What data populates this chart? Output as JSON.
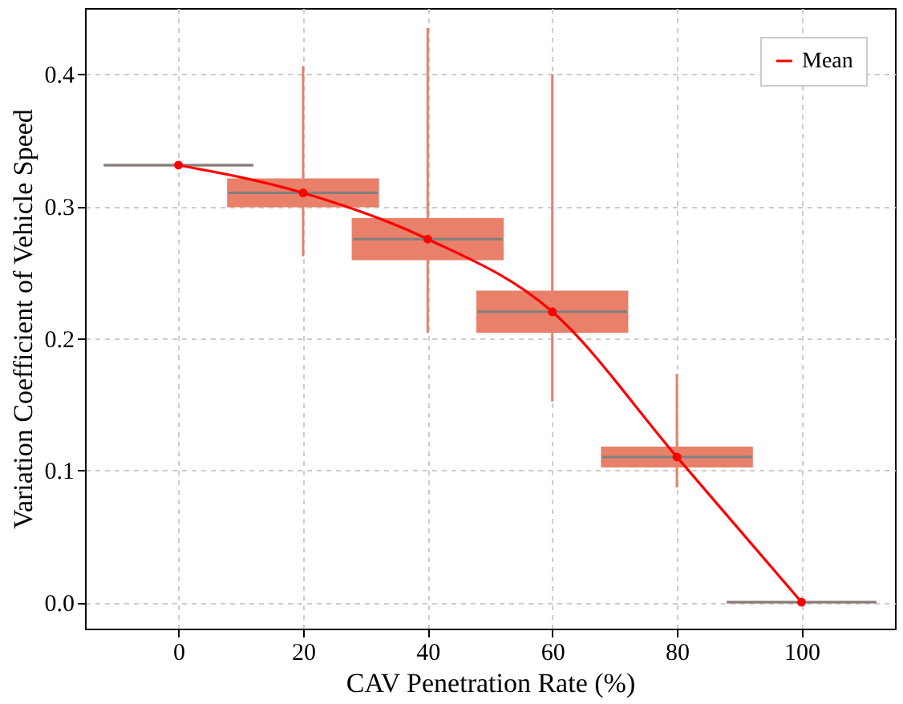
{
  "chart_data": {
    "type": "box",
    "xlabel": "CAV Penetration Rate (%)",
    "ylabel": "Variation Coefficient of Vehicle Speed",
    "x": [
      0,
      20,
      40,
      60,
      80,
      100
    ],
    "xlim": [
      -15,
      115
    ],
    "xticks": [
      0,
      20,
      40,
      60,
      80,
      100
    ],
    "ylim": [
      -0.02,
      0.45
    ],
    "yticks": [
      {
        "value": 0,
        "label": "0.0"
      },
      0.1,
      0.2,
      0.3,
      0.4
    ],
    "grid": true,
    "legend": "top right",
    "series": [
      {
        "color": "#e8806a",
        "boxes": [
          {
            "low": 0.331,
            "q1": 0.331,
            "median": 0.331,
            "q3": 0.331,
            "high": 0.331
          },
          {
            "low": 0.262,
            "q1": 0.3,
            "median": 0.31,
            "q3": 0.32,
            "high": 0.406
          },
          {
            "low": 0.204,
            "q1": 0.26,
            "median": 0.275,
            "q3": 0.29,
            "high": 0.435
          },
          {
            "low": 0.152,
            "q1": 0.205,
            "median": 0.22,
            "q3": 0.235,
            "high": 0.4
          },
          {
            "low": 0.087,
            "q1": 0.103,
            "median": 0.11,
            "q3": 0.117,
            "high": 0.173
          },
          {
            "low": 0.0,
            "q1": 0.0,
            "median": 0.0,
            "q3": 0.0,
            "high": 0.0
          }
        ]
      },
      {
        "type": "line",
        "name": "Mean",
        "color": "#ff0000",
        "marker": "circle",
        "line_style": "solid",
        "values": [
          0.331,
          0.31,
          0.275,
          0.22,
          0.11,
          0.0
        ]
      }
    ]
  }
}
